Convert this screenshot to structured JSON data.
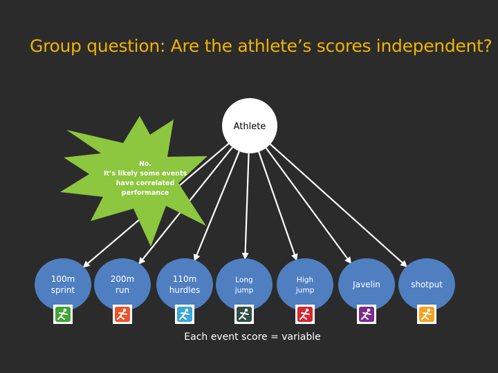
{
  "slide": {
    "title": "Group question: Are the athlete’s scores independent?",
    "caption": "Each event score = variable"
  },
  "diagram": {
    "root": {
      "label": "Athlete",
      "color": "#ffffff"
    },
    "node_color": "#4f7fc0",
    "edge_color": "#ffffff",
    "children": [
      {
        "lines": [
          "100m",
          "sprint"
        ],
        "icon": "sprint-icon",
        "icon_color": "#3fa535"
      },
      {
        "lines": [
          "200m",
          "run"
        ],
        "icon": "run-icon",
        "icon_color": "#e8542a"
      },
      {
        "lines": [
          "110m",
          "hurdles"
        ],
        "icon": "hurdles-icon",
        "icon_color": "#3ba6d9"
      },
      {
        "lines": [
          "Long",
          "jump"
        ],
        "icon": "long-jump-icon",
        "icon_color": "#2f4f46"
      },
      {
        "lines": [
          "High",
          "jump"
        ],
        "icon": "high-jump-icon",
        "icon_color": "#d6262f"
      },
      {
        "lines": [
          "Javelin"
        ],
        "icon": "javelin-icon",
        "icon_color": "#7a2c8f"
      },
      {
        "lines": [
          "shotput"
        ],
        "icon": "shotput-icon",
        "icon_color": "#f4a320"
      }
    ]
  },
  "callout": {
    "color": "#8dc63f",
    "lines": [
      "No.",
      "It’s likely some events",
      "have correlated",
      "performance"
    ]
  }
}
